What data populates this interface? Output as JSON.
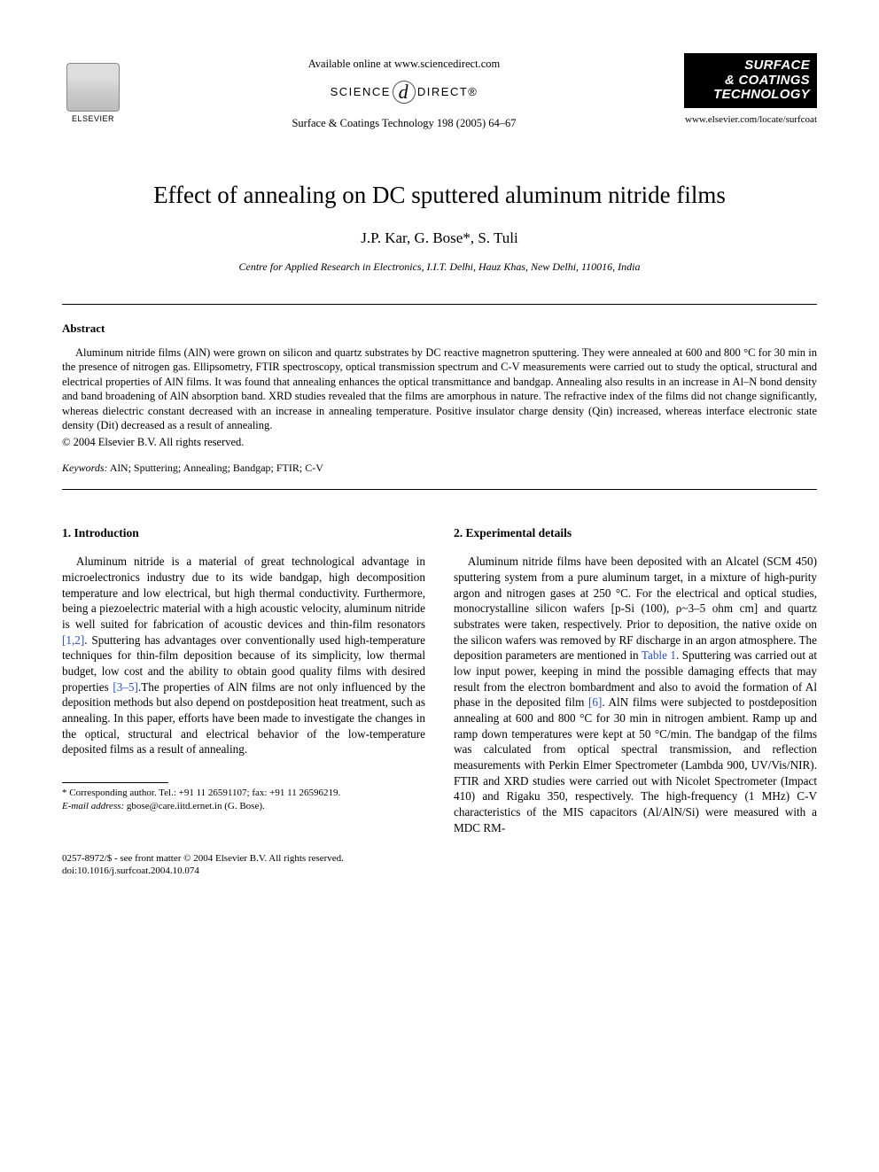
{
  "header": {
    "publisher": "ELSEVIER",
    "available_online": "Available online at www.sciencedirect.com",
    "brand_left": "SCIENCE",
    "brand_right": "DIRECT®",
    "journal_ref": "Surface & Coatings Technology 198 (2005) 64–67",
    "journal_logo_line1": "SURFACE",
    "journal_logo_line2": "& COATINGS",
    "journal_logo_line3": "TECHNOLOGY",
    "journal_url": "www.elsevier.com/locate/surfcoat"
  },
  "article": {
    "title": "Effect of annealing on DC sputtered aluminum nitride films",
    "authors": "J.P. Kar, G. Bose*, S. Tuli",
    "affiliation": "Centre for Applied Research in Electronics, I.I.T. Delhi, Hauz Khas, New Delhi, 110016, India"
  },
  "abstract": {
    "heading": "Abstract",
    "text": "Aluminum nitride films (AlN) were grown on silicon and quartz substrates by DC reactive magnetron sputtering. They were annealed at 600 and 800 °C for 30 min in the presence of nitrogen gas. Ellipsometry, FTIR spectroscopy, optical transmission spectrum and C-V measurements were carried out to study the optical, structural and electrical properties of AlN films. It was found that annealing enhances the optical transmittance and bandgap. Annealing also results in an increase in Al–N bond density and band broadening of AlN absorption band. XRD studies revealed that the films are amorphous in nature. The refractive index of the films did not change significantly, whereas dielectric constant decreased with an increase in annealing temperature. Positive insulator charge density (Qin) increased, whereas interface electronic state density (Dit) decreased as a result of annealing.",
    "copyright": "© 2004 Elsevier B.V. All rights reserved.",
    "keywords_label": "Keywords:",
    "keywords": "AlN; Sputtering; Annealing; Bandgap; FTIR; C-V"
  },
  "sections": {
    "intro_heading": "1. Introduction",
    "intro_text_1": "Aluminum nitride is a material of great technological advantage in microelectronics industry due to its wide bandgap, high decomposition temperature and low electrical, but high thermal conductivity. Furthermore, being a piezoelectric material with a high acoustic velocity, aluminum nitride is well suited for fabrication of acoustic devices and thin-film resonators ",
    "ref12": "[1,2]",
    "intro_text_2": ". Sputtering has advantages over conventionally used high-temperature techniques for thin-film deposition because of its simplicity, low thermal budget, low cost and the ability to obtain good quality films with desired properties ",
    "ref35": "[3–5]",
    "intro_text_3": ".The properties of AlN films are not only influenced by the deposition methods but also depend on postdeposition heat treatment, such as annealing. In this paper, efforts have been made to investigate the changes in the optical, structural and electrical behavior of the low-temperature deposited films as a result of annealing.",
    "exp_heading": "2. Experimental details",
    "exp_text_1": "Aluminum nitride films have been deposited with an Alcatel (SCM 450) sputtering system from a pure aluminum target, in a mixture of high-purity argon and nitrogen gases at 250 °C. For the electrical and optical studies, monocrystalline silicon wafers [p-Si (100), ρ~3–5 ohm cm] and quartz substrates were taken, respectively. Prior to deposition, the native oxide on the silicon wafers was removed by RF discharge in an argon atmosphere. The deposition parameters are mentioned in ",
    "table1": "Table 1",
    "exp_text_2": ". Sputtering was carried out at low input power, keeping in mind the possible damaging effects that may result from the electron bombardment and also to avoid the formation of Al phase in the deposited film ",
    "ref6": "[6]",
    "exp_text_3": ". AlN films were subjected to postdeposition annealing at 600 and 800 °C for 30 min in nitrogen ambient. Ramp up and ramp down temperatures were kept at 50 °C/min. The bandgap of the films was calculated from optical spectral transmission, and reflection measurements with Perkin Elmer Spectrometer (Lambda 900, UV/Vis/NIR). FTIR and XRD studies were carried out with Nicolet Spectrometer (Impact 410) and Rigaku 350, respectively. The high-frequency (1 MHz) C-V characteristics of the MIS capacitors (Al/AlN/Si) were measured with a MDC RM-"
  },
  "footnote": {
    "corresponding": "* Corresponding author. Tel.: +91 11 26591107; fax: +91 11 26596219.",
    "email_label": "E-mail address:",
    "email": "gbose@care.iitd.ernet.in (G. Bose)."
  },
  "bottom": {
    "issn": "0257-8972/$ - see front matter © 2004 Elsevier B.V. All rights reserved.",
    "doi": "doi:10.1016/j.surfcoat.2004.10.074"
  },
  "colors": {
    "link": "#2a4fc7",
    "text": "#000000",
    "bg": "#ffffff"
  }
}
